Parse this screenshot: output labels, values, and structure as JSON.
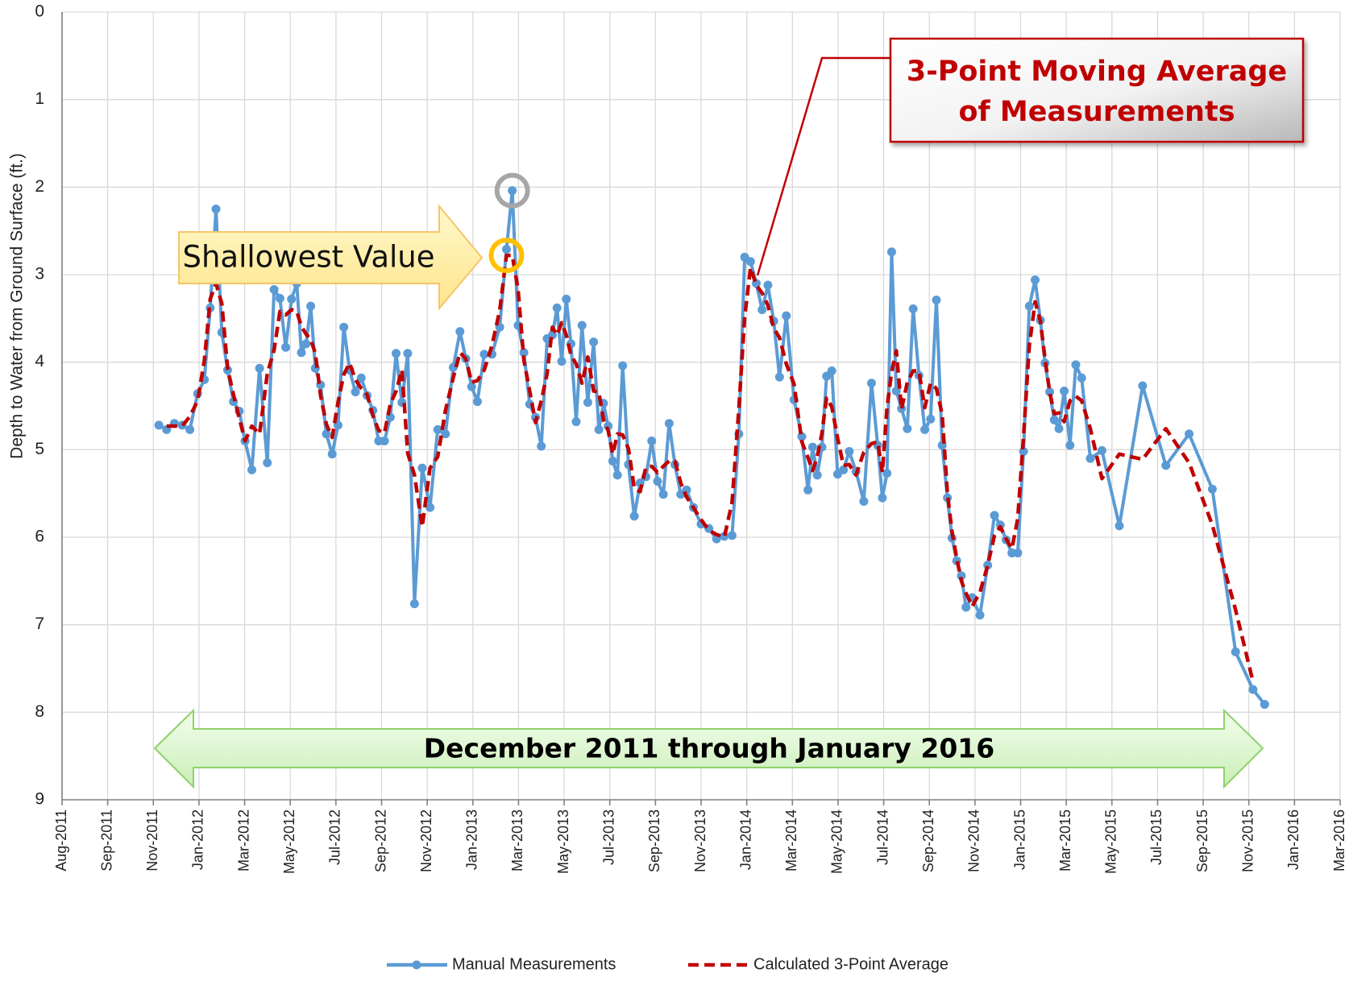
{
  "chart_data": {
    "type": "line",
    "y_label": "Depth to Water from Ground Surface (ft.)",
    "ylim": [
      0,
      9
    ],
    "yticks": [
      0,
      1,
      2,
      3,
      4,
      5,
      6,
      7,
      8,
      9
    ],
    "invert_y": true,
    "xlim": [
      "2011-08",
      "2016-03"
    ],
    "xticks": [
      "Aug-2011",
      "Sep-2011",
      "Nov-2011",
      "Jan-2012",
      "Mar-2012",
      "May-2012",
      "Jul-2012",
      "Sep-2012",
      "Nov-2012",
      "Jan-2013",
      "Mar-2013",
      "May-2013",
      "Jul-2013",
      "Sep-2013",
      "Nov-2013",
      "Jan-2014",
      "Mar-2014",
      "May-2014",
      "Jul-2014",
      "Sep-2014",
      "Nov-2014",
      "Jan-2015",
      "Mar-2015",
      "May-2015",
      "Jul-2015",
      "Sep-2015",
      "Nov-2015",
      "Jan-2016",
      "Mar-2016"
    ],
    "grid": true,
    "legend": "bottom",
    "x": [
      "2011-12",
      "2011-12",
      "2011-12",
      "2012-01",
      "2012-01",
      "2012-01",
      "2012-02",
      "2012-02",
      "2012-02",
      "2012-02",
      "2012-03",
      "2012-03",
      "2012-03",
      "2012-03",
      "2012-04",
      "2012-04",
      "2012-04",
      "2012-05",
      "2012-05",
      "2012-05",
      "2012-05",
      "2012-06",
      "2012-06",
      "2012-06",
      "2012-06",
      "2012-06",
      "2012-07",
      "2012-07",
      "2012-07",
      "2012-07",
      "2012-08",
      "2012-08",
      "2012-08",
      "2012-08",
      "2012-09",
      "2012-09",
      "2012-09",
      "2012-09",
      "2012-10",
      "2012-10",
      "2012-10",
      "2012-10",
      "2012-11",
      "2012-11",
      "2012-11",
      "2012-12",
      "2012-12",
      "2012-12",
      "2013-01",
      "2013-01",
      "2013-01",
      "2013-01",
      "2013-02",
      "2013-02",
      "2013-02",
      "2013-03",
      "2013-03",
      "2013-03",
      "2013-03",
      "2013-04",
      "2013-04",
      "2013-04",
      "2013-04",
      "2013-05",
      "2013-05",
      "2013-05",
      "2013-05",
      "2013-05",
      "2013-06",
      "2013-06",
      "2013-06",
      "2013-06",
      "2013-07",
      "2013-07",
      "2013-07",
      "2013-07",
      "2013-07",
      "2013-08",
      "2013-08",
      "2013-08",
      "2013-08",
      "2013-09",
      "2013-09",
      "2013-09",
      "2013-09",
      "2013-10",
      "2013-10",
      "2013-10",
      "2013-10",
      "2013-11",
      "2013-11",
      "2013-11",
      "2013-12",
      "2013-12",
      "2013-12",
      "2014-01",
      "2014-01",
      "2014-01",
      "2014-01",
      "2014-02",
      "2014-02",
      "2014-02",
      "2014-02",
      "2014-03",
      "2014-03",
      "2014-03",
      "2014-04",
      "2014-04",
      "2014-04",
      "2014-04",
      "2014-04",
      "2014-05",
      "2014-05",
      "2014-05",
      "2014-05",
      "2014-06",
      "2014-06",
      "2014-06",
      "2014-07",
      "2014-07",
      "2014-07",
      "2014-07",
      "2014-07",
      "2014-08",
      "2014-08",
      "2014-08",
      "2014-08",
      "2014-09",
      "2014-09",
      "2014-09",
      "2014-09",
      "2014-10",
      "2014-10",
      "2014-10",
      "2014-10",
      "2014-10",
      "2014-11",
      "2014-11",
      "2014-11",
      "2014-12",
      "2014-12",
      "2014-12",
      "2014-12",
      "2015-01",
      "2015-01",
      "2015-01",
      "2015-01",
      "2015-02",
      "2015-02",
      "2015-02",
      "2015-02",
      "2015-02",
      "2015-03",
      "2015-03",
      "2015-03",
      "2015-03",
      "2015-04",
      "2015-04",
      "2015-05",
      "2015-06",
      "2015-07",
      "2015-08",
      "2015-09",
      "2015-10",
      "2015-11",
      "2015-11"
    ],
    "series": [
      {
        "name": "Manual Measurements",
        "color": "#5b9bd5",
        "line_style": "solid",
        "marker": true,
        "values": [
          4.72,
          4.77,
          4.7,
          4.72,
          4.77,
          4.36,
          4.2,
          3.38,
          2.25,
          3.66,
          4.09,
          4.45,
          4.56,
          4.9,
          5.23,
          4.07,
          5.15,
          3.17,
          3.27,
          3.83,
          3.28,
          3.1,
          3.89,
          3.79,
          3.36,
          4.07,
          4.26,
          4.82,
          5.05,
          4.72,
          3.6,
          4.09,
          4.34,
          4.18,
          4.38,
          4.55,
          4.9,
          4.9,
          4.63,
          3.9,
          4.46,
          3.9,
          6.76,
          5.21,
          5.66,
          4.77,
          4.82,
          4.06,
          3.65,
          3.96,
          4.28,
          4.45,
          3.91,
          3.91,
          3.6,
          2.71,
          2.04,
          3.58,
          3.89,
          4.48,
          4.63,
          4.96,
          3.73,
          3.69,
          3.38,
          3.99,
          3.28,
          3.79,
          4.68,
          3.58,
          4.46,
          3.77,
          4.77,
          4.47,
          4.73,
          5.13,
          5.29,
          4.04,
          5.17,
          5.76,
          5.38,
          5.31,
          4.9,
          5.36,
          5.51,
          4.7,
          5.17,
          5.51,
          5.46,
          5.66,
          5.85,
          5.9,
          6.02,
          5.99,
          5.98,
          4.82,
          2.8,
          2.85,
          3.1,
          3.4,
          3.12,
          3.53,
          4.17,
          3.47,
          4.43,
          4.85,
          5.46,
          4.97,
          5.29,
          4.97,
          4.16,
          4.1,
          5.28,
          5.23,
          5.02,
          5.25,
          5.59,
          4.24,
          4.95,
          5.55,
          5.27,
          2.74,
          4.33,
          4.53,
          4.76,
          3.39,
          4.15,
          4.77,
          4.65,
          3.29,
          4.95,
          5.55,
          6.01,
          6.27,
          6.44,
          6.8,
          6.69,
          6.89,
          6.32,
          5.75,
          5.86,
          6.03,
          6.18,
          6.18,
          5.02,
          3.36,
          3.06,
          3.52,
          4.01,
          4.34,
          4.66,
          4.76,
          4.33,
          4.95,
          4.03,
          4.18,
          5.1,
          5.01,
          5.87,
          4.27,
          5.18,
          4.82,
          5.45,
          7.31,
          7.74,
          7.91
        ]
      },
      {
        "name": "Calculated 3-Point Average",
        "color": "#c00000",
        "line_style": "dashed",
        "marker": false,
        "values": [
          null,
          4.73,
          4.73,
          4.73,
          4.62,
          4.44,
          3.98,
          3.28,
          3.1,
          3.33,
          4.07,
          4.37,
          4.64,
          4.9,
          4.73,
          4.82,
          4.13,
          3.86,
          3.42,
          3.46,
          3.4,
          3.42,
          3.59,
          3.68,
          3.74,
          3.9,
          4.38,
          4.71,
          4.86,
          4.46,
          4.14,
          4.01,
          4.2,
          4.3,
          4.37,
          4.61,
          4.78,
          4.81,
          4.48,
          4.33,
          4.09,
          5.04,
          5.29,
          5.88,
          5.21,
          5.08,
          4.55,
          4.18,
          3.89,
          3.96,
          4.23,
          4.21,
          4.09,
          3.81,
          3.41,
          2.78,
          2.78,
          3.17,
          3.98,
          4.33,
          4.69,
          4.44,
          4.13,
          3.6,
          3.69,
          3.55,
          3.69,
          3.92,
          4.02,
          4.24,
          3.94,
          4.33,
          4.34,
          4.66,
          4.78,
          5.05,
          4.82,
          4.83,
          4.99,
          5.44,
          5.48,
          5.2,
          5.19,
          5.26,
          5.19,
          5.13,
          5.13,
          5.38,
          5.54,
          5.66,
          5.8,
          5.92,
          5.97,
          6.0,
          5.6,
          4.53,
          3.49,
          2.92,
          3.12,
          3.21,
          3.35,
          3.61,
          3.72,
          4.02,
          4.25,
          4.91,
          5.09,
          5.24,
          5.08,
          4.81,
          4.41,
          4.51,
          4.87,
          5.18,
          5.17,
          5.29,
          5.03,
          4.93,
          4.91,
          5.26,
          4.52,
          4.11,
          3.87,
          4.54,
          4.23,
          4.1,
          4.1,
          4.52,
          4.24,
          4.3,
          4.6,
          5.5,
          5.94,
          6.24,
          6.5,
          6.64,
          6.79,
          6.63,
          6.32,
          5.98,
          5.88,
          6.02,
          6.13,
          5.79,
          4.85,
          3.81,
          3.31,
          3.53,
          3.96,
          4.34,
          4.59,
          4.58,
          4.68,
          4.44,
          4.39,
          4.44,
          4.76,
          5.33,
          5.05,
          5.11,
          4.76,
          5.15,
          5.86,
          6.83,
          7.65,
          null
        ]
      }
    ],
    "annotations": {
      "shallowest": "Shallowest Value",
      "moving_average": [
        "3-Point Moving Average",
        "of Measurements"
      ],
      "period": "December 2011 through January 2016"
    }
  }
}
